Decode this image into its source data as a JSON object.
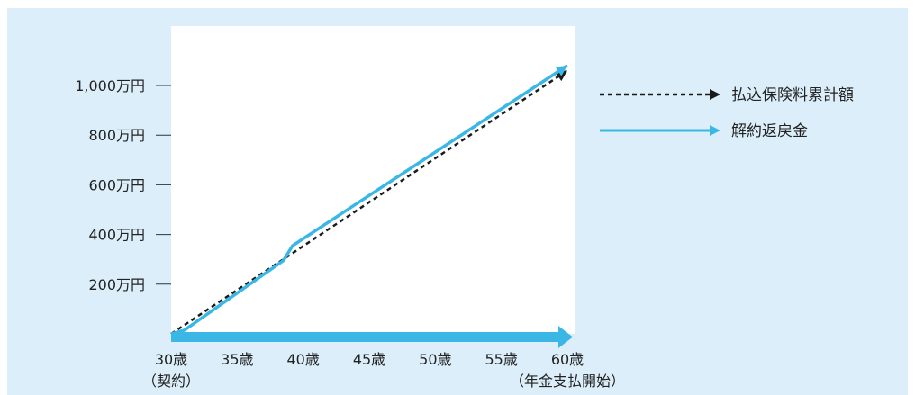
{
  "chart_data": {
    "type": "line",
    "title": "",
    "xlabel": "",
    "ylabel": "",
    "x_ticks": [
      {
        "age": 30,
        "label": "30歳",
        "sub": "（契約）"
      },
      {
        "age": 35,
        "label": "35歳",
        "sub": ""
      },
      {
        "age": 40,
        "label": "40歳",
        "sub": ""
      },
      {
        "age": 45,
        "label": "45歳",
        "sub": ""
      },
      {
        "age": 50,
        "label": "50歳",
        "sub": ""
      },
      {
        "age": 55,
        "label": "55歳",
        "sub": ""
      },
      {
        "age": 60,
        "label": "60歳",
        "sub": "（年金支払開始）"
      }
    ],
    "y_ticks": [
      {
        "value": 200,
        "label": "200万円"
      },
      {
        "value": 400,
        "label": "400万円"
      },
      {
        "value": 600,
        "label": "600万円"
      },
      {
        "value": 800,
        "label": "800万円"
      },
      {
        "value": 1000,
        "label": "1,000万円"
      }
    ],
    "xlim": [
      30,
      60
    ],
    "ylim": [
      0,
      1200
    ],
    "grid": false,
    "legend_position": "right",
    "series": [
      {
        "name": "払込保険料累計額",
        "style": "dashed",
        "color": "#1a1a1a",
        "x": [
          30,
          60
        ],
        "y": [
          0,
          1060
        ]
      },
      {
        "name": "解約返戻金",
        "style": "solid",
        "color": "#3bb7e6",
        "x": [
          30,
          31,
          38.5,
          39.2,
          60
        ],
        "y": [
          0,
          15,
          295,
          355,
          1080
        ]
      }
    ]
  },
  "colors": {
    "background": "#dbeef9",
    "plot_area": "#ffffff",
    "accent": "#3bb7e6",
    "dashed": "#1a1a1a"
  }
}
